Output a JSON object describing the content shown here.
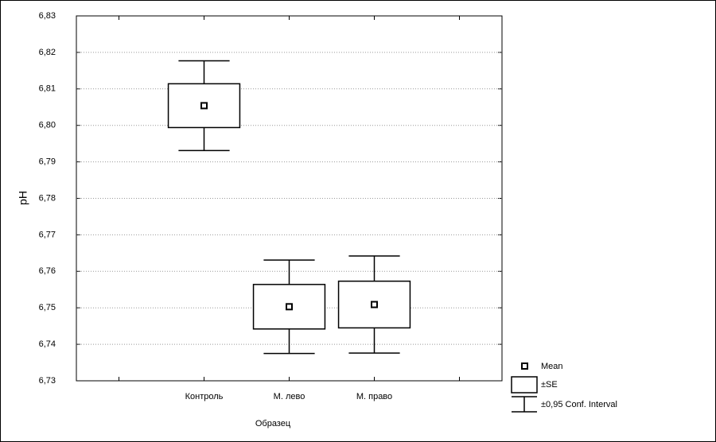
{
  "chart_data": {
    "type": "box",
    "x_label": "Образец",
    "y_label": "pH",
    "categories": [
      null,
      "Контроль",
      "М. лево",
      "М. право",
      null
    ],
    "mean": [
      null,
      6.8054,
      6.7503,
      6.7509,
      null
    ],
    "se": [
      null,
      0.006,
      0.0061,
      0.0064,
      null
    ],
    "ci": [
      null,
      0.0123,
      0.0128,
      0.0133,
      null
    ],
    "ylim": [
      6.73,
      6.83
    ],
    "yticks": [
      {
        "value": 6.73,
        "label": "6,73"
      },
      {
        "value": 6.74,
        "label": "6,74"
      },
      {
        "value": 6.75,
        "label": "6,75"
      },
      {
        "value": 6.76,
        "label": "6,76"
      },
      {
        "value": 6.77,
        "label": "6,77"
      },
      {
        "value": 6.78,
        "label": "6,78"
      },
      {
        "value": 6.79,
        "label": "6,79"
      },
      {
        "value": 6.8,
        "label": "6,80"
      },
      {
        "value": 6.81,
        "label": "6,81"
      },
      {
        "value": 6.82,
        "label": "6,82"
      },
      {
        "value": 6.83,
        "label": "6,83"
      }
    ],
    "grid": true,
    "legend": [
      "Mean",
      "±SE",
      "±0,95 Conf. Interval"
    ]
  }
}
